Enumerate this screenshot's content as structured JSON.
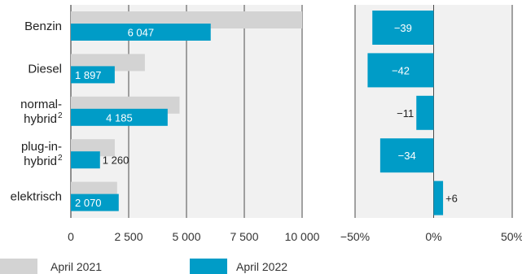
{
  "chart_data": [
    {
      "type": "bar",
      "orientation": "horizontal",
      "categories": [
        {
          "lines": [
            "Benzin"
          ],
          "sup": ""
        },
        {
          "lines": [
            "Diesel"
          ],
          "sup": ""
        },
        {
          "lines": [
            "normal-",
            "hybrid"
          ],
          "sup": "2"
        },
        {
          "lines": [
            "plug-in-",
            "hybrid"
          ],
          "sup": "2"
        },
        {
          "lines": [
            "elektrisch"
          ],
          "sup": ""
        }
      ],
      "series": [
        {
          "name": "April 2021",
          "color": "#d3d3d3",
          "values": [
            10000,
            3200,
            4700,
            1900,
            2000
          ]
        },
        {
          "name": "April 2022",
          "color": "#009cc7",
          "values": [
            6047,
            1897,
            4185,
            1260,
            2070
          ]
        }
      ],
      "value_labels": [
        "6 047",
        "1 897",
        "4 185",
        "1 260",
        "2 070"
      ],
      "xlim": [
        0,
        10000
      ],
      "xticks": [
        0,
        2500,
        5000,
        7500,
        10000
      ],
      "xtick_labels": [
        "0",
        "2 500",
        "5 000",
        "7 500",
        "10 000"
      ],
      "grid": true
    },
    {
      "type": "bar",
      "orientation": "horizontal",
      "series": [
        {
          "name": "April 2022",
          "color": "#009cc7",
          "values": [
            -39,
            -42,
            -11,
            -34,
            6
          ]
        }
      ],
      "value_labels": [
        "−39",
        "−42",
        "−11",
        "−34",
        "+6"
      ],
      "xlim": [
        -50,
        50
      ],
      "xticks": [
        -50,
        0,
        50
      ],
      "xtick_labels": [
        "−50%",
        "0%",
        "50%"
      ],
      "grid": true
    }
  ],
  "legend": [
    {
      "label": "April 2021",
      "color": "#d3d3d3"
    },
    {
      "label": "April 2022",
      "color": "#009cc7"
    }
  ]
}
